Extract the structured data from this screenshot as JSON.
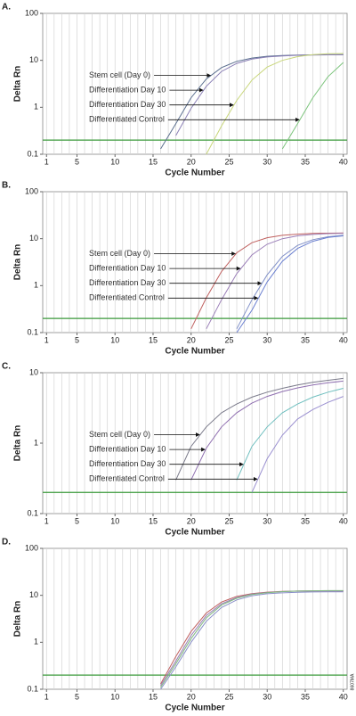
{
  "figure_id": "8607MA",
  "chart_data": [
    {
      "type": "line",
      "label": "A.",
      "xlabel": "Cycle Number",
      "ylabel": "Delta Rn",
      "log_y": true,
      "grid": true,
      "xlim": [
        0.5,
        40.5
      ],
      "ylim": [
        0.1,
        100
      ],
      "xticks": [
        1,
        5,
        10,
        15,
        20,
        25,
        30,
        35,
        40
      ],
      "yticks": [
        0.1,
        1,
        10,
        100
      ],
      "threshold": 0.2,
      "threshold_color": "#3a9a3a",
      "x": [
        16,
        18,
        20,
        22,
        24,
        26,
        28,
        30,
        32,
        34,
        36,
        38,
        40
      ],
      "series": [
        {
          "name": "Stem cell (Day 0)",
          "color": "#5b6f8f",
          "values": [
            0.13,
            0.45,
            1.6,
            4.0,
            7.0,
            9.5,
            11.2,
            12.2,
            12.7,
            13.0,
            13.1,
            13.2,
            13.2
          ]
        },
        {
          "name": "Differentiation Day 10",
          "color": "#8a7fb5",
          "values": [
            null,
            0.25,
            0.95,
            2.8,
            5.8,
            8.6,
            10.6,
            11.8,
            12.4,
            12.8,
            13.0,
            13.1,
            13.1
          ]
        },
        {
          "name": "Differentiation Day 30",
          "color": "#c8d67a",
          "values": [
            null,
            null,
            null,
            0.1,
            0.4,
            1.4,
            3.8,
            7.2,
            10.0,
            12.0,
            13.2,
            13.8,
            14.0
          ]
        },
        {
          "name": "Differentiated Control",
          "color": "#7cc47c",
          "values": [
            null,
            null,
            null,
            null,
            null,
            null,
            null,
            null,
            0.13,
            0.45,
            1.6,
            4.5,
            9.0
          ]
        }
      ]
    },
    {
      "type": "line",
      "label": "B.",
      "xlabel": "Cycle Number",
      "ylabel": "Delta Rn",
      "log_y": true,
      "grid": true,
      "xlim": [
        0.5,
        40.5
      ],
      "ylim": [
        0.1,
        100
      ],
      "xticks": [
        1,
        5,
        10,
        15,
        20,
        25,
        30,
        35,
        40
      ],
      "yticks": [
        0.1,
        1,
        10,
        100
      ],
      "threshold": 0.2,
      "threshold_color": "#3a9a3a",
      "x": [
        16,
        18,
        20,
        22,
        24,
        26,
        28,
        30,
        32,
        34,
        36,
        38,
        40
      ],
      "series": [
        {
          "name": "Stem cell (Day 0)",
          "color": "#c0605f",
          "values": [
            null,
            null,
            0.12,
            0.55,
            2.0,
            5.0,
            8.2,
            10.5,
            11.8,
            12.5,
            12.9,
            13.1,
            13.2
          ]
        },
        {
          "name": "Differentiation Day 10",
          "color": "#9b7fb8",
          "values": [
            null,
            null,
            null,
            0.12,
            0.5,
            1.8,
            4.5,
            7.6,
            10.0,
            11.5,
            12.3,
            12.8,
            13.0
          ]
        },
        {
          "name": "Differentiation Day 30",
          "color": "#8090c8",
          "values": [
            null,
            null,
            null,
            null,
            null,
            0.12,
            0.5,
            1.7,
            4.2,
            7.2,
            9.5,
            11.0,
            11.8
          ]
        },
        {
          "name": "Differentiated Control",
          "color": "#6a7fd0",
          "values": [
            null,
            null,
            null,
            null,
            null,
            0.1,
            0.3,
            1.2,
            3.3,
            6.2,
            8.8,
            10.6,
            11.5
          ]
        }
      ]
    },
    {
      "type": "line",
      "label": "C.",
      "xlabel": "Cycle Number",
      "ylabel": "Delta Rn",
      "log_y": true,
      "grid": true,
      "xlim": [
        0.5,
        40.5
      ],
      "ylim": [
        0.1,
        10
      ],
      "xticks": [
        1,
        5,
        10,
        15,
        20,
        25,
        30,
        35,
        40
      ],
      "yticks": [
        0.1,
        1,
        10
      ],
      "threshold": 0.2,
      "threshold_color": "#3a9a3a",
      "x": [
        16,
        18,
        20,
        22,
        24,
        26,
        28,
        30,
        32,
        34,
        36,
        38,
        40
      ],
      "series": [
        {
          "name": "Stem cell (Day 0)",
          "color": "#7a7a8a",
          "values": [
            null,
            0.3,
            0.9,
            1.7,
            2.7,
            3.6,
            4.5,
            5.3,
            6.0,
            6.7,
            7.3,
            7.8,
            8.3
          ]
        },
        {
          "name": "Differentiation Day 10",
          "color": "#8f6fb0",
          "values": [
            null,
            null,
            0.3,
            0.85,
            1.7,
            2.7,
            3.7,
            4.6,
            5.4,
            6.1,
            6.7,
            7.2,
            7.6
          ]
        },
        {
          "name": "Differentiation Day 30",
          "color": "#6fbfbf",
          "values": [
            null,
            null,
            null,
            null,
            null,
            0.3,
            0.9,
            1.7,
            2.7,
            3.6,
            4.5,
            5.3,
            6.0
          ]
        },
        {
          "name": "Differentiated Control",
          "color": "#9a8fd0",
          "values": [
            null,
            null,
            null,
            null,
            null,
            null,
            0.2,
            0.6,
            1.3,
            2.2,
            3.0,
            3.8,
            4.6
          ]
        }
      ]
    },
    {
      "type": "line",
      "label": "D.",
      "xlabel": "Cycle Number",
      "ylabel": "Delta Rn",
      "log_y": true,
      "grid": true,
      "xlim": [
        0.5,
        40.5
      ],
      "ylim": [
        0.1,
        100
      ],
      "xticks": [
        1,
        5,
        10,
        15,
        20,
        25,
        30,
        35,
        40
      ],
      "yticks": [
        0.1,
        1,
        10,
        100
      ],
      "threshold": 0.2,
      "threshold_color": "#3a9a3a",
      "x": [
        16,
        18,
        20,
        22,
        24,
        26,
        28,
        30,
        32,
        34,
        36,
        38,
        40
      ],
      "series": [
        {
          "color": "#c06060",
          "values": [
            0.13,
            0.5,
            1.7,
            4.2,
            7.2,
            9.5,
            10.9,
            11.7,
            12.1,
            12.3,
            12.4,
            12.4,
            12.3
          ]
        },
        {
          "color": "#9a7fb5",
          "values": [
            0.12,
            0.4,
            1.4,
            3.7,
            6.6,
            9.0,
            10.6,
            11.5,
            12.0,
            12.3,
            12.4,
            12.4,
            12.4
          ]
        },
        {
          "color": "#7fb87f",
          "values": [
            0.11,
            0.35,
            1.2,
            3.3,
            6.2,
            8.7,
            10.4,
            11.4,
            12.0,
            12.3,
            12.5,
            12.6,
            12.6
          ]
        },
        {
          "color": "#8a90c8",
          "values": [
            0.1,
            0.3,
            1.0,
            2.8,
            5.5,
            8.0,
            9.8,
            10.8,
            11.3,
            11.6,
            11.8,
            11.9,
            11.9
          ]
        }
      ]
    }
  ]
}
